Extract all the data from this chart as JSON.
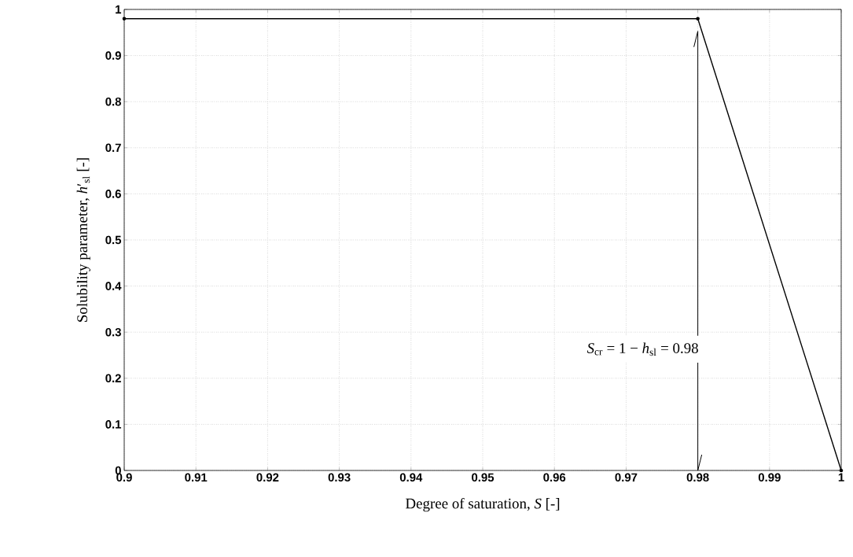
{
  "chart_data": {
    "type": "line",
    "x": [
      0.9,
      0.98,
      1
    ],
    "values": [
      0.98,
      0.98,
      0
    ],
    "color": "#000000",
    "xlabel": "Degree of saturation, *S* [-]",
    "ylabel": "Solubility parameter, *h*′$_{sl}$ [-]",
    "xlim": [
      0.9,
      1
    ],
    "ylim": [
      0,
      1
    ],
    "xticks": [
      0.9,
      0.91,
      0.92,
      0.93,
      0.94,
      0.95,
      0.96,
      0.97,
      0.98,
      0.99,
      1
    ],
    "yticks": [
      0,
      0.1,
      0.2,
      0.3,
      0.4,
      0.5,
      0.6,
      0.7,
      0.8,
      0.9,
      1
    ],
    "grid": true,
    "marker": "circle",
    "line_style": "solid",
    "ref_lines": [
      {
        "axis": "x",
        "value": 0.98,
        "label": "*S*$_{cr}$ = 1 − *h*$_{sl}$ = 0.98"
      }
    ]
  }
}
